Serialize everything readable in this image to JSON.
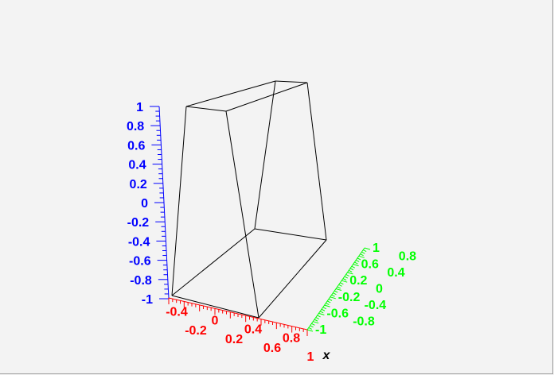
{
  "chart_data": {
    "type": "line",
    "grid": false,
    "x_axis": {
      "label": "x",
      "color": "#ff0000",
      "ticks": [
        "-0.4",
        "-0.2",
        "0",
        "0.2",
        "0.4",
        "0.6",
        "0.8",
        "1"
      ]
    },
    "y_axis": {
      "label": "",
      "color": "#00ff00",
      "ticks": [
        "-1",
        "-0.8",
        "-0.6",
        "-0.4",
        "-0.2",
        "0",
        "0.2",
        "0.4",
        "0.6",
        "0.8",
        "1"
      ]
    },
    "z_axis": {
      "label": "",
      "color": "#0000ff",
      "range": [
        -1,
        1
      ],
      "ticks": [
        "1",
        "0.8",
        "0.6",
        "0.4",
        "0.2",
        "0",
        "-0.2",
        "-0.4",
        "-0.6",
        "-0.8",
        "-1"
      ]
    },
    "wireframe_color": "#000000"
  }
}
